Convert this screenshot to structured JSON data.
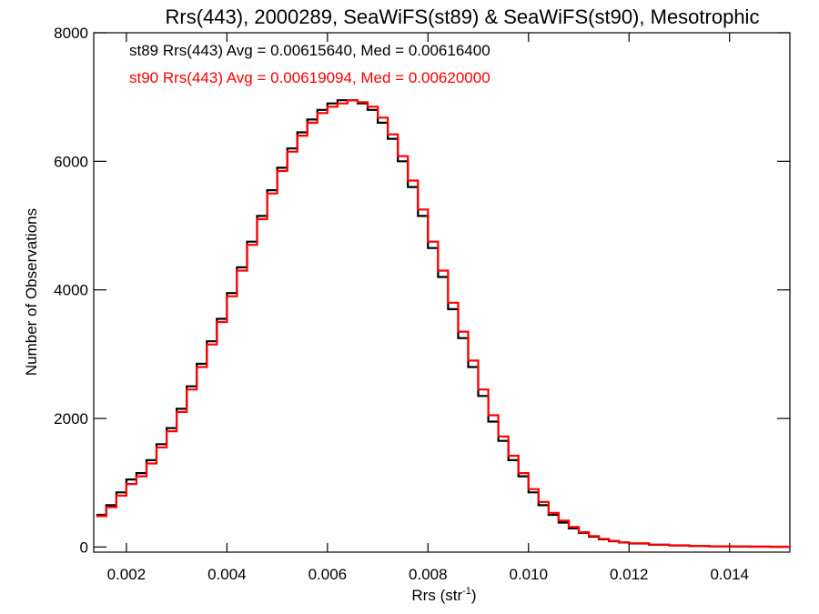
{
  "chart_data": {
    "type": "line",
    "title": "Rrs(443), 2000289, SeaWiFS(st89) & SeaWiFS(st90), Mesotrophic",
    "xlabel": "Rrs (str",
    "xlabel_sup": "-1",
    "xlabel_suffix": ")",
    "ylabel": "Number of Observations",
    "xlim": [
      0.00135,
      0.0152
    ],
    "ylim": [
      -80,
      8000
    ],
    "xticks": [
      0.002,
      0.004,
      0.006,
      0.008,
      0.01,
      0.012,
      0.014
    ],
    "xtick_labels": [
      "0.002",
      "0.004",
      "0.006",
      "0.008",
      "0.010",
      "0.012",
      "0.014"
    ],
    "yticks": [
      0,
      2000,
      4000,
      6000,
      8000
    ],
    "ytick_labels": [
      "0",
      "2000",
      "4000",
      "6000",
      "8000"
    ],
    "grid": false,
    "legend_position": "top-left",
    "series": [
      {
        "name": "st89",
        "label": "st89 Rrs(443) Avg = 0.00615640, Med = 0.00616400",
        "color": "#000000",
        "x": [
          0.0014,
          0.0016,
          0.0018,
          0.002,
          0.0022,
          0.0024,
          0.0026,
          0.0028,
          0.003,
          0.0032,
          0.0034,
          0.0036,
          0.0038,
          0.004,
          0.0042,
          0.0044,
          0.0046,
          0.0048,
          0.005,
          0.0052,
          0.0054,
          0.0056,
          0.0058,
          0.006,
          0.0062,
          0.0064,
          0.0066,
          0.0068,
          0.007,
          0.0072,
          0.0074,
          0.0076,
          0.0078,
          0.008,
          0.0082,
          0.0084,
          0.0086,
          0.0088,
          0.009,
          0.0092,
          0.0094,
          0.0096,
          0.0098,
          0.01,
          0.0102,
          0.0104,
          0.0106,
          0.0108,
          0.011,
          0.0112,
          0.0114,
          0.0116,
          0.0118,
          0.012,
          0.0124,
          0.0128,
          0.0132,
          0.0136,
          0.014,
          0.0144,
          0.0148,
          0.0152
        ],
        "y": [
          500,
          650,
          850,
          1050,
          1150,
          1350,
          1600,
          1850,
          2150,
          2500,
          2850,
          3200,
          3550,
          3950,
          4350,
          4750,
          5150,
          5550,
          5900,
          6200,
          6450,
          6650,
          6800,
          6900,
          6950,
          6950,
          6900,
          6800,
          6600,
          6350,
          6000,
          5600,
          5150,
          4650,
          4200,
          3700,
          3250,
          2800,
          2350,
          1950,
          1650,
          1350,
          1100,
          850,
          650,
          500,
          380,
          290,
          220,
          160,
          120,
          90,
          70,
          55,
          35,
          25,
          15,
          10,
          8,
          5,
          4,
          3
        ]
      },
      {
        "name": "st90",
        "label": "st90 Rrs(443) Avg = 0.00619094, Med = 0.00620000",
        "color": "#ff0000",
        "x": [
          0.0014,
          0.0016,
          0.0018,
          0.002,
          0.0022,
          0.0024,
          0.0026,
          0.0028,
          0.003,
          0.0032,
          0.0034,
          0.0036,
          0.0038,
          0.004,
          0.0042,
          0.0044,
          0.0046,
          0.0048,
          0.005,
          0.0052,
          0.0054,
          0.0056,
          0.0058,
          0.006,
          0.0062,
          0.0064,
          0.0066,
          0.0068,
          0.007,
          0.0072,
          0.0074,
          0.0076,
          0.0078,
          0.008,
          0.0082,
          0.0084,
          0.0086,
          0.0088,
          0.009,
          0.0092,
          0.0094,
          0.0096,
          0.0098,
          0.01,
          0.0102,
          0.0104,
          0.0106,
          0.0108,
          0.011,
          0.0112,
          0.0114,
          0.0116,
          0.0118,
          0.012,
          0.0124,
          0.0128,
          0.0132,
          0.0136,
          0.014,
          0.0144,
          0.0148,
          0.0152
        ],
        "y": [
          480,
          620,
          800,
          980,
          1100,
          1300,
          1550,
          1800,
          2100,
          2450,
          2800,
          3150,
          3500,
          3900,
          4300,
          4700,
          5100,
          5500,
          5850,
          6150,
          6400,
          6600,
          6750,
          6850,
          6900,
          6950,
          6920,
          6850,
          6680,
          6420,
          6080,
          5700,
          5250,
          4750,
          4300,
          3800,
          3350,
          2900,
          2450,
          2050,
          1720,
          1420,
          1150,
          900,
          700,
          530,
          410,
          310,
          230,
          170,
          125,
          95,
          72,
          56,
          36,
          26,
          16,
          11,
          9,
          6,
          5,
          4
        ]
      }
    ]
  }
}
